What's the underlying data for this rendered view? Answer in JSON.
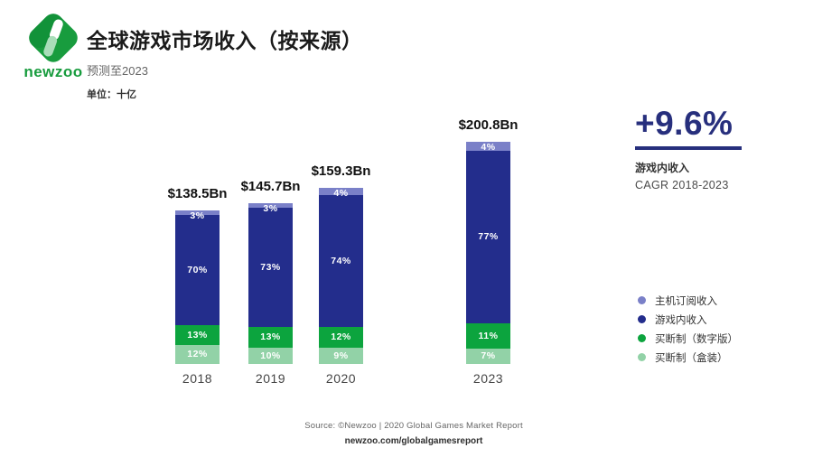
{
  "header": {
    "logo_text": "newzoo",
    "title": "全球游戏市场收入（按来源）",
    "subtitle": "预测至2023",
    "unit_label": "单位：十亿"
  },
  "chart_data": {
    "type": "bar",
    "stacked": true,
    "unit": "billions USD",
    "categories": [
      "2018",
      "2019",
      "2020",
      "2023"
    ],
    "totals": [
      138.5,
      145.7,
      159.3,
      200.8
    ],
    "total_labels": [
      "$138.5Bn",
      "$145.7Bn",
      "$159.3Bn",
      "$200.8Bn"
    ],
    "series": [
      {
        "name": "主机订阅收入",
        "color": "#7a80c8",
        "values_pct": [
          3,
          3,
          4,
          4
        ]
      },
      {
        "name": "游戏内收入",
        "color": "#232d8c",
        "values_pct": [
          70,
          73,
          74,
          77
        ]
      },
      {
        "name": "买断制（数字版）",
        "color": "#0ca43e",
        "values_pct": [
          13,
          13,
          12,
          11
        ]
      },
      {
        "name": "买断制（盒装）",
        "color": "#92d2a7",
        "values_pct": [
          12,
          10,
          9,
          7
        ]
      }
    ],
    "grid": false,
    "legend_position": "right",
    "value_label_format": "percent"
  },
  "highlight": {
    "value": "+9.6%",
    "line1": "游戏内收入",
    "line2": "CAGR 2018-2023",
    "color": "#272f7d"
  },
  "footer": {
    "source": "Source: ©Newzoo | 2020 Global Games Market Report",
    "url": "newzoo.com/globalgamesreport"
  },
  "brand": {
    "logo_green": "#189c3e",
    "logo_light_green": "#a9ddb9"
  }
}
